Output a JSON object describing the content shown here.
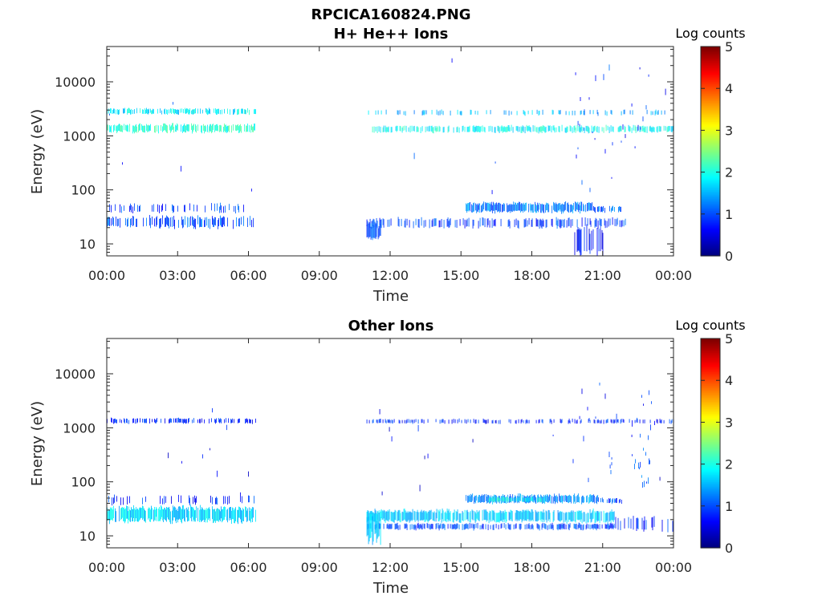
{
  "figure": {
    "title": "RPCICA160824.PNG"
  },
  "chart_data": [
    {
      "type": "heatmap",
      "title": "H+ He++ Ions",
      "xlabel": "Time",
      "ylabel": "Energy (eV)",
      "x_ticks": [
        "00:00",
        "03:00",
        "06:00",
        "09:00",
        "12:00",
        "15:00",
        "18:00",
        "21:00",
        "00:00"
      ],
      "x_range_hours": [
        0,
        24
      ],
      "y_scale": "log",
      "y_range_eV": [
        6,
        45000
      ],
      "y_ticks": [
        {
          "value": 10,
          "label": "10"
        },
        {
          "value": 100,
          "label": "100"
        },
        {
          "value": 1000,
          "label": "1000"
        },
        {
          "value": 10000,
          "label": "10000"
        }
      ],
      "colorbar": {
        "label": "Log counts",
        "range": [
          0,
          5
        ],
        "ticks": [
          "0",
          "1",
          "2",
          "3",
          "4",
          "5"
        ],
        "colormap": "jet"
      },
      "data_gaps_hours": [
        [
          6.3,
          11.0
        ]
      ],
      "features": [
        {
          "t": [
            0.0,
            6.3
          ],
          "e": [
            1150,
            1650
          ],
          "level": 2.1,
          "density": 0.7
        },
        {
          "t": [
            0.0,
            6.3
          ],
          "e": [
            2500,
            3200
          ],
          "level": 1.8,
          "density": 0.6
        },
        {
          "t": [
            0.0,
            6.3
          ],
          "e": [
            20,
            32
          ],
          "level": 1.0,
          "density": 0.5
        },
        {
          "t": [
            0.0,
            6.3
          ],
          "e": [
            38,
            55
          ],
          "level": 0.9,
          "density": 0.2
        },
        {
          "t": [
            0.0,
            6.3
          ],
          "e": [
            50,
            30000
          ],
          "level": 0.8,
          "density": 0.04
        },
        {
          "t": [
            11.0,
            24.0
          ],
          "e": [
            1150,
            1550
          ],
          "level": 1.9,
          "density": 0.55
        },
        {
          "t": [
            11.0,
            24.0
          ],
          "e": [
            2400,
            3000
          ],
          "level": 1.5,
          "density": 0.2
        },
        {
          "t": [
            11.0,
            22.0
          ],
          "e": [
            20,
            30
          ],
          "level": 0.9,
          "density": 0.4
        },
        {
          "t": [
            11.0,
            11.6
          ],
          "e": [
            12,
            24
          ],
          "level": 1.0,
          "density": 0.9
        },
        {
          "t": [
            15.2,
            20.6
          ],
          "e": [
            38,
            58
          ],
          "level": 1.2,
          "density": 0.85
        },
        {
          "t": [
            20.5,
            21.8
          ],
          "e": [
            38,
            50
          ],
          "level": 1.1,
          "density": 0.5
        },
        {
          "t": [
            11.0,
            24.0
          ],
          "e": [
            50,
            30000
          ],
          "level": 0.8,
          "density": 0.04
        },
        {
          "t": [
            19.7,
            21.4
          ],
          "e": [
            60,
            30000
          ],
          "level": 0.9,
          "density": 0.35
        },
        {
          "t": [
            21.4,
            23.0
          ],
          "e": [
            300,
            8000
          ],
          "level": 0.8,
          "density": 0.15
        },
        {
          "t": [
            19.7,
            21.0
          ],
          "e": [
            6,
            20
          ],
          "level": 0.7,
          "density": 0.35
        }
      ]
    },
    {
      "type": "heatmap",
      "title": "Other Ions",
      "xlabel": "Time",
      "ylabel": "Energy (eV)",
      "x_ticks": [
        "00:00",
        "03:00",
        "06:00",
        "09:00",
        "12:00",
        "15:00",
        "18:00",
        "21:00",
        "00:00"
      ],
      "x_range_hours": [
        0,
        24
      ],
      "y_scale": "log",
      "y_range_eV": [
        6,
        45000
      ],
      "y_ticks": [
        {
          "value": 10,
          "label": "10"
        },
        {
          "value": 100,
          "label": "100"
        },
        {
          "value": 1000,
          "label": "1000"
        },
        {
          "value": 10000,
          "label": "10000"
        }
      ],
      "colorbar": {
        "label": "Log counts",
        "range": [
          0,
          5
        ],
        "ticks": [
          "0",
          "1",
          "2",
          "3",
          "4",
          "5"
        ],
        "colormap": "jet"
      },
      "data_gaps_hours": [
        [
          6.3,
          11.0
        ]
      ],
      "features": [
        {
          "t": [
            0.0,
            6.3
          ],
          "e": [
            1200,
            1500
          ],
          "level": 0.8,
          "density": 0.45
        },
        {
          "t": [
            0.0,
            6.3
          ],
          "e": [
            18,
            35
          ],
          "level": 1.7,
          "density": 0.85
        },
        {
          "t": [
            0.0,
            6.3
          ],
          "e": [
            38,
            55
          ],
          "level": 0.8,
          "density": 0.2
        },
        {
          "t": [
            0.0,
            6.3
          ],
          "e": [
            60,
            3000
          ],
          "level": 0.6,
          "density": 0.03
        },
        {
          "t": [
            11.0,
            24.0
          ],
          "e": [
            1200,
            1450
          ],
          "level": 0.8,
          "density": 0.4
        },
        {
          "t": [
            11.0,
            21.5
          ],
          "e": [
            18,
            30
          ],
          "level": 1.6,
          "density": 0.8
        },
        {
          "t": [
            11.0,
            21.5
          ],
          "e": [
            13,
            17
          ],
          "level": 1.0,
          "density": 0.6
        },
        {
          "t": [
            11.0,
            11.6
          ],
          "e": [
            8,
            28
          ],
          "level": 1.6,
          "density": 0.9
        },
        {
          "t": [
            21.5,
            24.0
          ],
          "e": [
            12,
            22
          ],
          "level": 0.8,
          "density": 0.35
        },
        {
          "t": [
            15.2,
            20.8
          ],
          "e": [
            40,
            58
          ],
          "level": 1.3,
          "density": 0.85
        },
        {
          "t": [
            16.0,
            18.5
          ],
          "e": [
            42,
            52
          ],
          "level": 1.9,
          "density": 0.5
        },
        {
          "t": [
            20.8,
            21.8
          ],
          "e": [
            40,
            50
          ],
          "level": 1.0,
          "density": 0.5
        },
        {
          "t": [
            19.7,
            21.4
          ],
          "e": [
            60,
            8000
          ],
          "level": 0.8,
          "density": 0.22
        },
        {
          "t": [
            22.2,
            23.0
          ],
          "e": [
            90,
            700
          ],
          "level": 1.1,
          "density": 0.45
        },
        {
          "t": [
            22.2,
            23.2
          ],
          "e": [
            700,
            8000
          ],
          "level": 0.8,
          "density": 0.2
        },
        {
          "t": [
            11.0,
            24.0
          ],
          "e": [
            60,
            3000
          ],
          "level": 0.6,
          "density": 0.03
        }
      ]
    }
  ]
}
